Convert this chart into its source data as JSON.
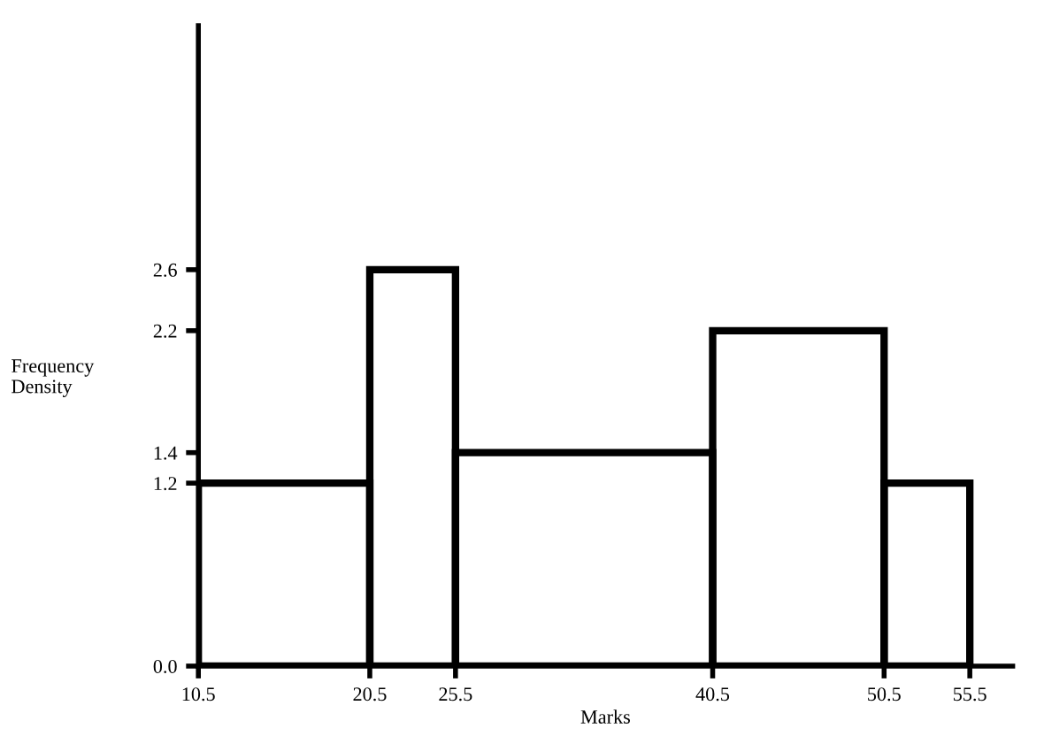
{
  "chart_data": {
    "type": "histogram",
    "xlabel": "Marks",
    "ylabel": "Frequency\nDensity",
    "bins": [
      10.5,
      20.5,
      25.5,
      40.5,
      50.5,
      55.5
    ],
    "values": [
      1.2,
      2.6,
      1.4,
      2.2,
      1.2
    ],
    "color": "#000000",
    "xlim": [
      10.5,
      58
    ],
    "ylim": [
      0,
      4.2
    ],
    "xticks": [
      10.5,
      20.5,
      25.5,
      40.5,
      50.5,
      55.5
    ],
    "yticks": [
      {
        "value": 0,
        "label": "0.0"
      },
      1.2,
      1.4,
      2.2,
      2.6
    ],
    "grid": false
  }
}
